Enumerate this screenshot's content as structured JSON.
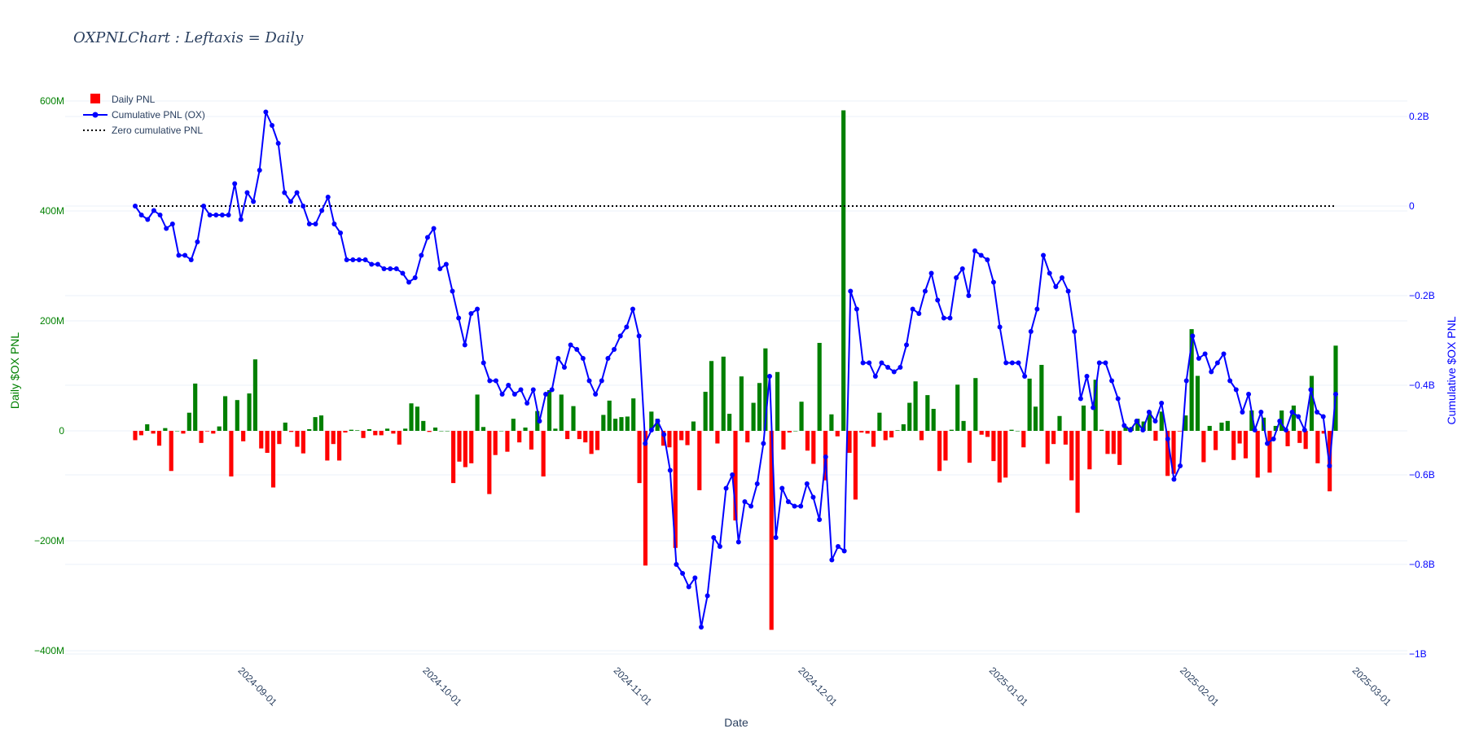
{
  "chart_data": {
    "type": "bar",
    "title": "OXPNLChart : Leftaxis = Daily",
    "xlabel": "Date",
    "ylabel": "Daily $OX PNL",
    "y2label": "Cumulative $OX PNL",
    "x_ticks": [
      "2024-09-01",
      "2024-10-01",
      "2024-11-01",
      "2024-12-01",
      "2025-01-01",
      "2025-02-01",
      "2025-03-01"
    ],
    "y_ticks": [
      "600M",
      "400M",
      "200M",
      "0",
      "−200M",
      "−400M"
    ],
    "y2_ticks": [
      "0.2B",
      "0",
      "−0.2B",
      "−0.4B",
      "−0.6B",
      "−0.8B",
      "−1B"
    ],
    "y_range": [
      -400,
      600
    ],
    "y_unit": "M",
    "y2_range": [
      -1.0,
      0.2
    ],
    "y2_unit": "B",
    "x_start": "2024-08-13",
    "x_end": "2025-02-24",
    "legend": {
      "position": "top-left",
      "items": [
        "Daily PNL",
        "Cumulative PNL (OX)",
        "Zero cumulative PNL"
      ]
    },
    "colors": {
      "positive_bar": "#008000",
      "negative_bar": "#ff0000",
      "cumulative_line": "#0000ff",
      "zero_line": "#000000",
      "left_axis": "#008000",
      "right_axis": "#0000ff"
    },
    "series": [
      {
        "name": "Daily PNL",
        "type": "bar",
        "axis": "left",
        "values": [
          -17,
          -8,
          12,
          -5,
          -27,
          5,
          -73,
          0,
          -5,
          33,
          86,
          -22,
          -1,
          -5,
          8,
          63,
          -83,
          56,
          -19,
          68,
          130,
          -32,
          -40,
          -103,
          -24,
          15,
          -2,
          -29,
          -41,
          3,
          25,
          28,
          -54,
          -24,
          -54,
          -3,
          2,
          1,
          -13,
          3,
          -8,
          -8,
          4,
          -5,
          -25,
          4,
          50,
          44,
          18,
          -2,
          6,
          0,
          0,
          -95,
          -56,
          -66,
          -59,
          66,
          7,
          -115,
          -44,
          0,
          -38,
          22,
          -21,
          6,
          -34,
          36,
          -83,
          74,
          4,
          66,
          -15,
          45,
          -15,
          -21,
          -42,
          -35,
          29,
          55,
          22,
          25,
          26,
          59,
          -95,
          -245,
          35,
          22,
          -27,
          -30,
          -213,
          -17,
          -26,
          17,
          -108,
          71,
          127,
          -23,
          135,
          31,
          -163,
          99,
          -21,
          51,
          87,
          150,
          -362,
          107,
          -34,
          -3,
          0,
          53,
          -36,
          -60,
          160,
          -90,
          30,
          -10,
          583,
          -40,
          -125,
          -3,
          -5,
          -29,
          33,
          -17,
          -12,
          1,
          12,
          51,
          90,
          -17,
          65,
          40,
          -73,
          -54,
          2,
          84,
          18,
          -58,
          96,
          -7,
          -11,
          -55,
          -94,
          -85,
          2,
          0,
          -30,
          95,
          44,
          120,
          -60,
          -24,
          27,
          -25,
          -90,
          -149,
          46,
          -70,
          93,
          2,
          -42,
          -42,
          -62,
          8,
          7,
          22,
          17,
          35,
          -18,
          35,
          -82,
          -78,
          -1,
          28,
          185,
          100,
          -57,
          9,
          -35,
          15,
          18,
          -53,
          -23,
          -50,
          37,
          -85,
          24,
          -76,
          9,
          37,
          -28,
          46,
          -22,
          -33,
          100,
          -59,
          -5,
          -110,
          155
        ]
      },
      {
        "name": "Cumulative PNL (OX)",
        "type": "line",
        "axis": "right",
        "values": [
          0.0,
          -0.02,
          -0.03,
          -0.01,
          -0.02,
          -0.05,
          -0.04,
          -0.11,
          -0.11,
          -0.12,
          -0.08,
          0.0,
          -0.02,
          -0.02,
          -0.02,
          -0.02,
          0.05,
          -0.03,
          0.03,
          0.01,
          0.08,
          0.21,
          0.18,
          0.14,
          0.03,
          0.01,
          0.03,
          0.0,
          -0.04,
          -0.04,
          -0.01,
          0.02,
          -0.04,
          -0.06,
          -0.12,
          -0.12,
          -0.12,
          -0.12,
          -0.13,
          -0.13,
          -0.14,
          -0.14,
          -0.14,
          -0.15,
          -0.17,
          -0.16,
          -0.11,
          -0.07,
          -0.05,
          -0.14,
          -0.13,
          -0.19,
          -0.25,
          -0.31,
          -0.24,
          -0.23,
          -0.35,
          -0.39,
          -0.39,
          -0.42,
          -0.4,
          -0.42,
          -0.41,
          -0.44,
          -0.41,
          -0.48,
          -0.42,
          -0.41,
          -0.34,
          -0.36,
          -0.31,
          -0.32,
          -0.34,
          -0.39,
          -0.42,
          -0.39,
          -0.34,
          -0.32,
          -0.29,
          -0.27,
          -0.23,
          -0.29,
          -0.53,
          -0.5,
          -0.48,
          -0.51,
          -0.59,
          -0.8,
          -0.82,
          -0.85,
          -0.83,
          -0.94,
          -0.87,
          -0.74,
          -0.76,
          -0.63,
          -0.6,
          -0.75,
          -0.66,
          -0.67,
          -0.62,
          -0.53,
          -0.38,
          -0.74,
          -0.63,
          -0.66,
          -0.67,
          -0.67,
          -0.62,
          -0.65,
          -0.7,
          -0.56,
          -0.79,
          -0.76,
          -0.77,
          -0.19,
          -0.23,
          -0.35,
          -0.35,
          -0.38,
          -0.35,
          -0.36,
          -0.37,
          -0.36,
          -0.31,
          -0.23,
          -0.24,
          -0.19,
          -0.15,
          -0.21,
          -0.25,
          -0.25,
          -0.16,
          -0.14,
          -0.2,
          -0.1,
          -0.11,
          -0.12,
          -0.17,
          -0.27,
          -0.35,
          -0.35,
          -0.35,
          -0.38,
          -0.28,
          -0.23,
          -0.11,
          -0.15,
          -0.18,
          -0.16,
          -0.19,
          -0.28,
          -0.43,
          -0.38,
          -0.45,
          -0.35,
          -0.35,
          -0.39,
          -0.43,
          -0.49,
          -0.5,
          -0.48,
          -0.5,
          -0.46,
          -0.48,
          -0.44,
          -0.52,
          -0.61,
          -0.58,
          -0.39,
          -0.29,
          -0.34,
          -0.33,
          -0.37,
          -0.35,
          -0.33,
          -0.39,
          -0.41,
          -0.46,
          -0.42,
          -0.5,
          -0.46,
          -0.53,
          -0.52,
          -0.48,
          -0.5,
          -0.46,
          -0.47,
          -0.5,
          -0.41,
          -0.46,
          -0.47,
          -0.58,
          -0.42
        ]
      },
      {
        "name": "Zero cumulative PNL",
        "type": "line",
        "axis": "right",
        "values": [
          0,
          0
        ]
      }
    ]
  }
}
